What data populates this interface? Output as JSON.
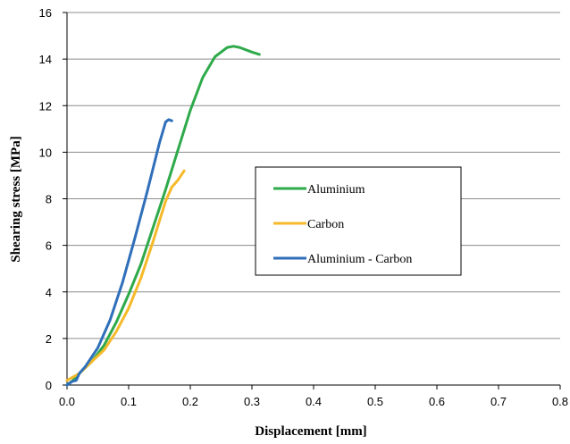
{
  "chart_data": {
    "type": "line",
    "title": "",
    "xlabel": "Displacement [mm]",
    "ylabel": "Shearing  stress  [MPa]",
    "xlim": [
      0,
      0.8
    ],
    "ylim": [
      0,
      16
    ],
    "xticks": [
      0.0,
      0.1,
      0.2,
      0.3,
      0.4,
      0.5,
      0.6,
      0.7,
      0.8
    ],
    "xtick_labels": [
      "0.0",
      "0.1",
      "0.2",
      "0.3",
      "0.4",
      "0.5",
      "0.6",
      "0.7",
      "0.8"
    ],
    "yticks": [
      0,
      2,
      4,
      6,
      8,
      10,
      12,
      14,
      16
    ],
    "ytick_labels": [
      "0",
      "2",
      "4",
      "6",
      "8",
      "10",
      "12",
      "14",
      "16"
    ],
    "grid": "horizontal",
    "legend_position": "center-right",
    "series": [
      {
        "name": "Aluminium",
        "color": "#2eaa4a",
        "x": [
          0.0,
          0.01,
          0.02,
          0.04,
          0.06,
          0.08,
          0.1,
          0.12,
          0.14,
          0.16,
          0.18,
          0.2,
          0.22,
          0.24,
          0.26,
          0.27,
          0.28,
          0.3,
          0.312
        ],
        "y": [
          0.0,
          0.2,
          0.5,
          1.0,
          1.7,
          2.7,
          3.9,
          5.2,
          6.8,
          8.4,
          10.1,
          11.8,
          13.2,
          14.1,
          14.5,
          14.55,
          14.5,
          14.3,
          14.2
        ]
      },
      {
        "name": "Carbon",
        "color": "#f5b92a",
        "x": [
          0.0,
          0.02,
          0.04,
          0.06,
          0.08,
          0.1,
          0.12,
          0.14,
          0.16,
          0.17,
          0.18,
          0.19
        ],
        "y": [
          0.2,
          0.5,
          1.0,
          1.5,
          2.3,
          3.3,
          4.6,
          6.2,
          7.9,
          8.5,
          8.8,
          9.2
        ]
      },
      {
        "name": "Aluminium - Carbon",
        "color": "#2f6fba",
        "x": [
          0.0,
          0.008,
          0.015,
          0.02,
          0.03,
          0.05,
          0.07,
          0.09,
          0.11,
          0.13,
          0.15,
          0.16,
          0.165,
          0.17
        ],
        "y": [
          0.0,
          0.15,
          0.2,
          0.5,
          0.8,
          1.6,
          2.8,
          4.4,
          6.3,
          8.3,
          10.4,
          11.3,
          11.4,
          11.35
        ]
      }
    ]
  }
}
